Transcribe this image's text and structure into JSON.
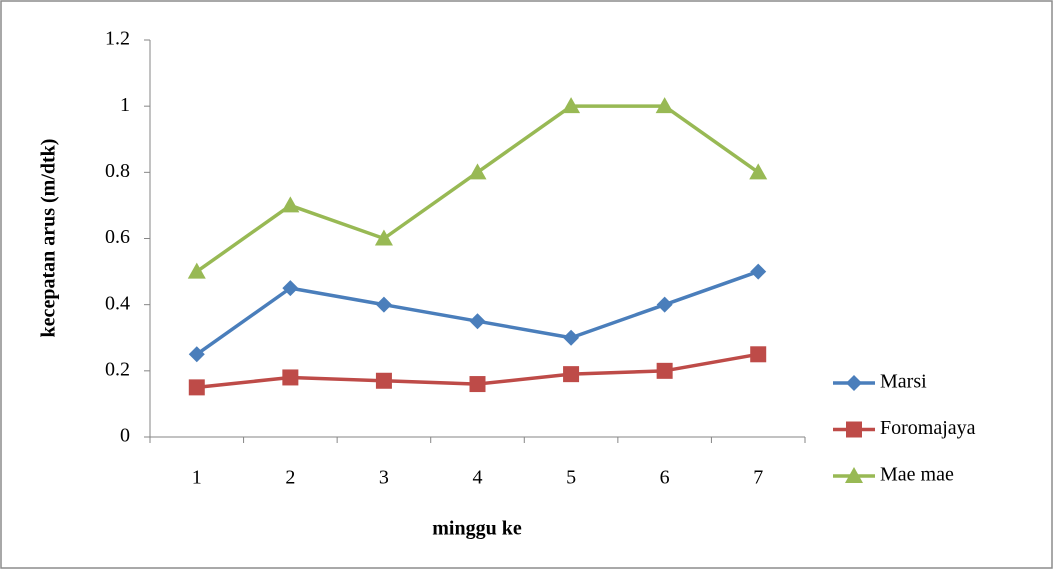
{
  "chart_data": {
    "type": "line",
    "xlabel": "minggu ke",
    "ylabel": "kecepatan arus (m/dtk)",
    "categories": [
      "1",
      "2",
      "3",
      "4",
      "5",
      "6",
      "7"
    ],
    "series": [
      {
        "name": "Marsi",
        "color": "#4a7ebb",
        "marker": "diamond",
        "values": [
          0.25,
          0.45,
          0.4,
          0.35,
          0.3,
          0.4,
          0.5
        ]
      },
      {
        "name": "Foromajaya",
        "color": "#be4b48",
        "marker": "square",
        "values": [
          0.15,
          0.18,
          0.17,
          0.16,
          0.19,
          0.2,
          0.25
        ]
      },
      {
        "name": "Mae mae",
        "color": "#98b954",
        "marker": "triangle",
        "values": [
          0.5,
          0.7,
          0.6,
          0.8,
          1,
          1,
          0.8
        ]
      }
    ],
    "ylim": [
      0,
      1.2
    ],
    "yticks": [
      0,
      0.2,
      0.4,
      0.6,
      0.8,
      1,
      1.2
    ],
    "grid": false,
    "legend": "right"
  }
}
